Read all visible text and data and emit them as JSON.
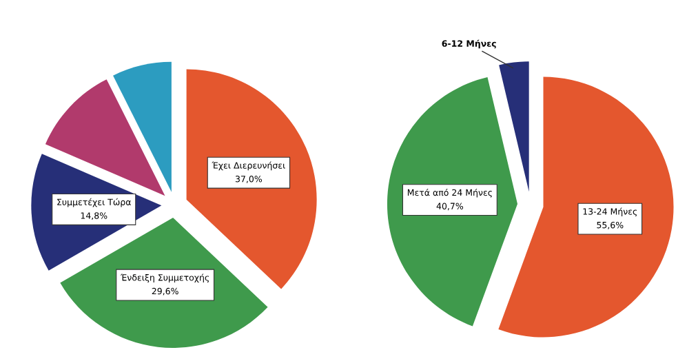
{
  "chart_data": [
    {
      "type": "pie",
      "categories": [
        "Έχει Διερευνήσει",
        "Ένδειξη Συμμετοχής",
        "Συμμετέχει Τώρα",
        null,
        null
      ],
      "values": [
        37.0,
        29.6,
        14.8,
        11.1,
        7.4
      ],
      "colors": [
        "#e4572e",
        "#3f9a4c",
        "#262f78",
        "#b13a6c",
        "#2c9cc0"
      ],
      "value_labels": [
        "37,0%",
        "29,6%",
        "14,8%",
        null,
        null
      ]
    },
    {
      "type": "pie",
      "categories": [
        "13-24 Μήνες",
        "Μετά από 24 Μήνες",
        "6-12 Μήνες"
      ],
      "values": [
        55.6,
        40.7,
        3.7
      ],
      "colors": [
        "#e4572e",
        "#3f9a4c",
        "#262f78"
      ],
      "value_labels": [
        "55,6%",
        "40,7%",
        null
      ]
    }
  ]
}
